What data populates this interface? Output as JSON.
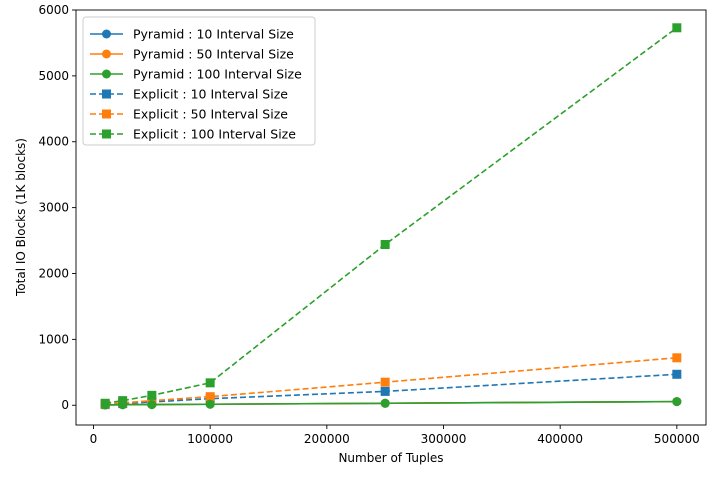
{
  "chart_data": {
    "type": "line",
    "title": "",
    "xlabel": "Number of Tuples",
    "ylabel": "Total IO Blocks (1K blocks)",
    "xlim": [
      -15000,
      525000
    ],
    "ylim": [
      -300,
      6000
    ],
    "xticks": [
      0,
      100000,
      200000,
      300000,
      400000,
      500000
    ],
    "xtick_labels": [
      "0",
      "100000",
      "200000",
      "300000",
      "400000",
      "500000"
    ],
    "yticks": [
      0,
      1000,
      2000,
      3000,
      4000,
      5000,
      6000
    ],
    "ytick_labels": [
      "0",
      "1000",
      "2000",
      "3000",
      "4000",
      "5000",
      "6000"
    ],
    "grid": false,
    "legend_position": "top-left",
    "series": [
      {
        "name": "Pyramid : 10 Interval Size",
        "color": "#1f77b4",
        "marker": "circle",
        "linestyle": "solid",
        "x": [
          10000,
          25000,
          50000,
          100000,
          250000,
          500000
        ],
        "y": [
          5,
          8,
          10,
          15,
          30,
          55
        ]
      },
      {
        "name": "Pyramid : 50 Interval Size",
        "color": "#ff7f0e",
        "marker": "circle",
        "linestyle": "solid",
        "x": [
          10000,
          25000,
          50000,
          100000,
          250000,
          500000
        ],
        "y": [
          5,
          8,
          10,
          15,
          30,
          55
        ]
      },
      {
        "name": "Pyramid : 100 Interval Size",
        "color": "#2ca02c",
        "marker": "circle",
        "linestyle": "solid",
        "x": [
          10000,
          25000,
          50000,
          100000,
          250000,
          500000
        ],
        "y": [
          5,
          8,
          10,
          15,
          30,
          55
        ]
      },
      {
        "name": "Explicit : 10 Interval Size",
        "color": "#1f77b4",
        "marker": "square",
        "linestyle": "dashed",
        "x": [
          10000,
          25000,
          50000,
          100000,
          250000,
          500000
        ],
        "y": [
          10,
          25,
          50,
          100,
          210,
          470
        ]
      },
      {
        "name": "Explicit : 50 Interval Size",
        "color": "#ff7f0e",
        "marker": "square",
        "linestyle": "dashed",
        "x": [
          10000,
          25000,
          50000,
          100000,
          250000,
          500000
        ],
        "y": [
          15,
          35,
          70,
          130,
          350,
          720
        ]
      },
      {
        "name": "Explicit : 100 Interval Size",
        "color": "#2ca02c",
        "marker": "square",
        "linestyle": "dashed",
        "x": [
          10000,
          25000,
          50000,
          100000,
          250000,
          500000
        ],
        "y": [
          30,
          70,
          150,
          340,
          2440,
          5730
        ]
      }
    ]
  }
}
